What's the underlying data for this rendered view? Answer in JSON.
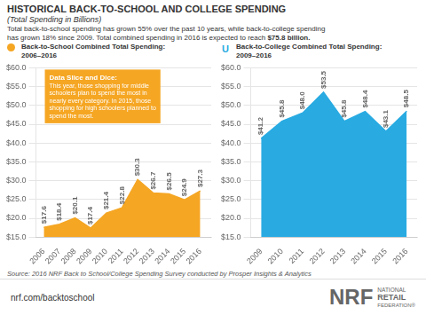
{
  "title": "HISTORICAL BACK-TO-SCHOOL AND COLLEGE SPENDING",
  "subtitle": "(Total Spending in Billions)",
  "annotations": [
    "Total back-to-school spending has grown 55% over the past 10 years, while back-to-college spending",
    "has grown 18% since 2009. Total combined spending in 2016 is expected to reach ",
    "$75.8 billion.",
    "Source: 2016 NRF Back to School/College Spending Survey conducted by Prosper Insights & Analytics",
    "nrf.com/backtoschool",
    "NRF",
    "NATIONAL",
    "RETAIL",
    "FEDERATION®"
  ],
  "chart_data": [
    {
      "type": "area",
      "title": "Back-to-School Combined Total Spending:",
      "subtitle": "2006–2016",
      "annotations": [
        "Data Slice and Dice:",
        "This year, those shopping for middle\nschoolers plan to spend the most in\nnearly every category. In 2015, those\nshopping for high schoolers planned to\nspend the most."
      ],
      "x": [
        2006,
        2007,
        2008,
        2009,
        2010,
        2011,
        2012,
        2013,
        2014,
        2015,
        2016
      ],
      "values": [
        17.6,
        18.4,
        20.1,
        17.4,
        21.4,
        22.8,
        30.3,
        26.7,
        26.5,
        24.9,
        27.3
      ],
      "value_labels": [
        "$17.6",
        "$18.4",
        "$20.1",
        "$17.4",
        "$21.4",
        "$22.8",
        "$30.3",
        "$26.7",
        "$26.5",
        "$24.9",
        "$27.3"
      ],
      "data_labels": true,
      "color": "#f5a623",
      "xlim": [
        2005.5,
        2016.7
      ],
      "xticks": [
        2006,
        2007,
        2008,
        2009,
        2010,
        2011,
        2012,
        2013,
        2014,
        2015,
        2016
      ],
      "ylim": [
        15.0,
        60.0
      ],
      "yticks": [
        {
          "value": 15.0,
          "label": "$15.0"
        },
        {
          "value": 20.0,
          "label": "$20.0"
        },
        {
          "value": 25.0,
          "label": "$25.0"
        },
        {
          "value": 30.0,
          "label": "$30.0"
        },
        {
          "value": 35.0,
          "label": "$35.0"
        },
        {
          "value": 40.0,
          "label": "$40.0"
        },
        {
          "value": 45.0,
          "label": "$45.0"
        },
        {
          "value": 50.0,
          "label": "$50.0"
        },
        {
          "value": 55.0,
          "label": "$55.0"
        },
        {
          "value": 60.0,
          "label": "$60.0"
        }
      ],
      "grid": true
    },
    {
      "type": "area",
      "title": "Back-to-College Combined Total Spending:",
      "subtitle": "2009–2016",
      "annotations": [
        "U"
      ],
      "x": [
        2009,
        2010,
        2011,
        2012,
        2013,
        2014,
        2015,
        2016
      ],
      "values": [
        41.2,
        45.8,
        48.0,
        53.5,
        45.8,
        48.4,
        43.1,
        48.5
      ],
      "value_labels": [
        "$41.2",
        "$45.8",
        "$48.0",
        "$53.5",
        "$45.8",
        "$48.4",
        "$43.1",
        "$48.5"
      ],
      "data_labels": true,
      "color": "#29abe2",
      "xlim": [
        2008.5,
        2016.5
      ],
      "xticks": [
        2009,
        2010,
        2011,
        2012,
        2013,
        2014,
        2015,
        2016
      ],
      "ylim": [
        15.0,
        60.0
      ],
      "yticks": [
        {
          "value": 15.0,
          "label": "$15.0"
        },
        {
          "value": 20.0,
          "label": "$20.0"
        },
        {
          "value": 25.0,
          "label": "$25.0"
        },
        {
          "value": 30.0,
          "label": "$30.0"
        },
        {
          "value": 35.0,
          "label": "$35.0"
        },
        {
          "value": 40.0,
          "label": "$40.0"
        },
        {
          "value": 45.0,
          "label": "$45.0"
        },
        {
          "value": 50.0,
          "label": "$50.0"
        },
        {
          "value": 55.0,
          "label": "$55.0"
        },
        {
          "value": 60.0,
          "label": "$60.0"
        }
      ],
      "grid": true
    }
  ]
}
